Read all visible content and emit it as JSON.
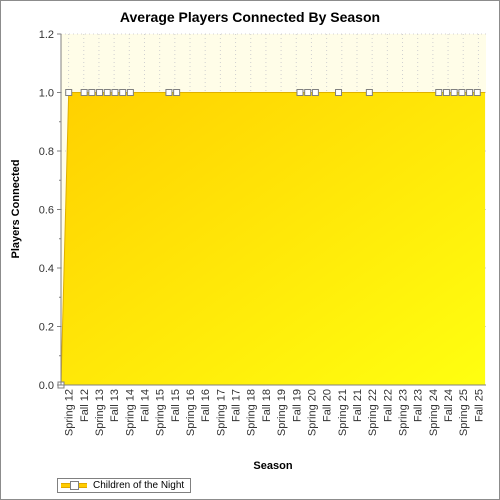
{
  "chart_data": {
    "type": "area",
    "title": "Average Players Connected By Season",
    "xlabel": "Season",
    "ylabel": "Players Connected",
    "ylim": [
      0,
      1.2
    ],
    "yticks": [
      "0.0",
      "0.2",
      "0.4",
      "0.6",
      "0.8",
      "1.0",
      "1.2"
    ],
    "grid": true,
    "legend_position": "bottom-left",
    "categories": [
      "Spring 12",
      "Fall 12",
      "Spring 13",
      "Fall 13",
      "Spring 14",
      "Fall 14",
      "Spring 15",
      "Fall 15",
      "Spring 16",
      "Fall 16",
      "Spring 17",
      "Fall 17",
      "Spring 18",
      "Fall 18",
      "Spring 19",
      "Fall 19",
      "Spring 20",
      "Fall 20",
      "Spring 21",
      "Fall 21",
      "Spring 22",
      "Fall 22",
      "Spring 23",
      "Fall 23",
      "Spring 24",
      "Fall 24",
      "Spring 25",
      "Fall 25"
    ],
    "series": [
      {
        "name": "Children of the Night",
        "color": "#ffd700",
        "points": [
          0,
          1,
          1,
          1,
          1,
          1,
          1,
          1,
          1,
          1,
          1,
          1,
          1,
          1,
          1,
          1,
          1,
          1,
          1,
          1,
          1,
          1,
          1,
          1,
          1,
          1,
          1,
          1,
          1,
          1,
          1,
          1,
          1,
          1,
          1,
          1,
          1,
          1,
          1,
          1,
          1,
          1,
          1,
          1,
          1,
          1,
          1,
          1,
          1,
          1,
          1,
          1,
          1,
          1,
          1,
          1
        ],
        "markers": [
          1,
          1,
          0,
          1,
          1,
          1,
          1,
          1,
          1,
          1,
          0,
          0,
          0,
          0,
          1,
          1,
          0,
          0,
          0,
          0,
          0,
          0,
          0,
          0,
          0,
          0,
          0,
          0,
          0,
          0,
          0,
          1,
          1,
          1,
          0,
          0,
          1,
          0,
          0,
          0,
          1,
          0,
          0,
          0,
          0,
          0,
          0,
          0,
          0,
          1,
          1,
          1,
          1,
          1,
          1,
          0
        ]
      }
    ]
  },
  "legend": {
    "label": "Children of the Night"
  }
}
